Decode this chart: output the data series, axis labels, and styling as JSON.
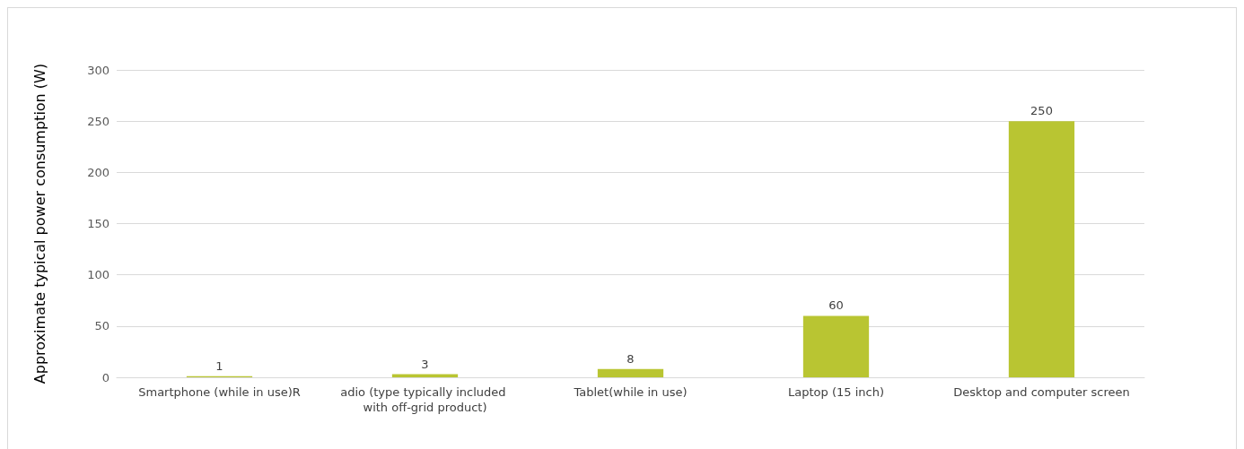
{
  "chart_data": {
    "type": "bar",
    "ylabel": "Approximate typical power consumption (W)",
    "categories": [
      "Smartphone (while in use)R",
      "adio (type typically included with off-grid product)",
      "Tablet(while in use)",
      "Laptop (15 inch)",
      "Desktop and computer screen"
    ],
    "values": [
      1,
      3,
      8,
      60,
      250
    ],
    "color": "#b9c532",
    "ylim": [
      0,
      300
    ],
    "yticks": [
      0,
      50,
      100,
      150,
      200,
      250,
      300
    ],
    "grid": "y",
    "data_labels": true
  }
}
